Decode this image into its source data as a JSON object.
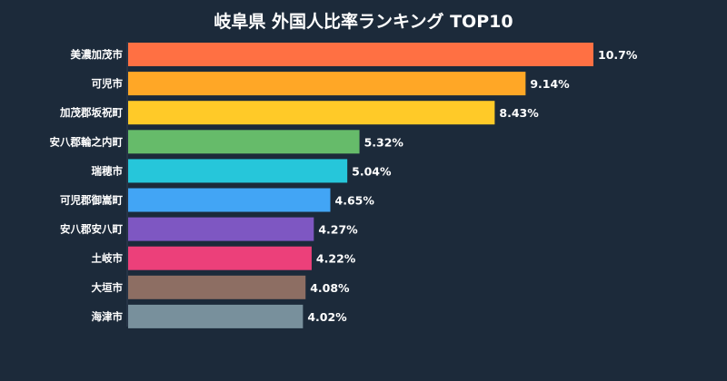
{
  "chart_data": {
    "type": "bar",
    "orientation": "horizontal",
    "title": "岐阜県 外国人比率ランキング TOP10",
    "xlabel": "",
    "ylabel": "",
    "xlim": [
      0,
      10.7
    ],
    "grid": false,
    "legend": "none",
    "categories": [
      "美濃加茂市",
      "可児市",
      "加茂郡坂祝町",
      "安八郡輪之内町",
      "瑞穂市",
      "可児郡御嵩町",
      "安八郡安八町",
      "土岐市",
      "大垣市",
      "海津市"
    ],
    "values": [
      10.7,
      9.14,
      8.43,
      5.32,
      5.04,
      4.65,
      4.27,
      4.22,
      4.08,
      4.02
    ],
    "value_labels": [
      "10.7%",
      "9.14%",
      "8.43%",
      "5.32%",
      "5.04%",
      "4.65%",
      "4.27%",
      "4.22%",
      "4.08%",
      "4.02%"
    ],
    "colors": [
      "#ff7043",
      "#ffa726",
      "#ffca28",
      "#66bb6a",
      "#26c6da",
      "#42a5f5",
      "#7e57c2",
      "#ec407a",
      "#8d6e63",
      "#78909c"
    ]
  }
}
